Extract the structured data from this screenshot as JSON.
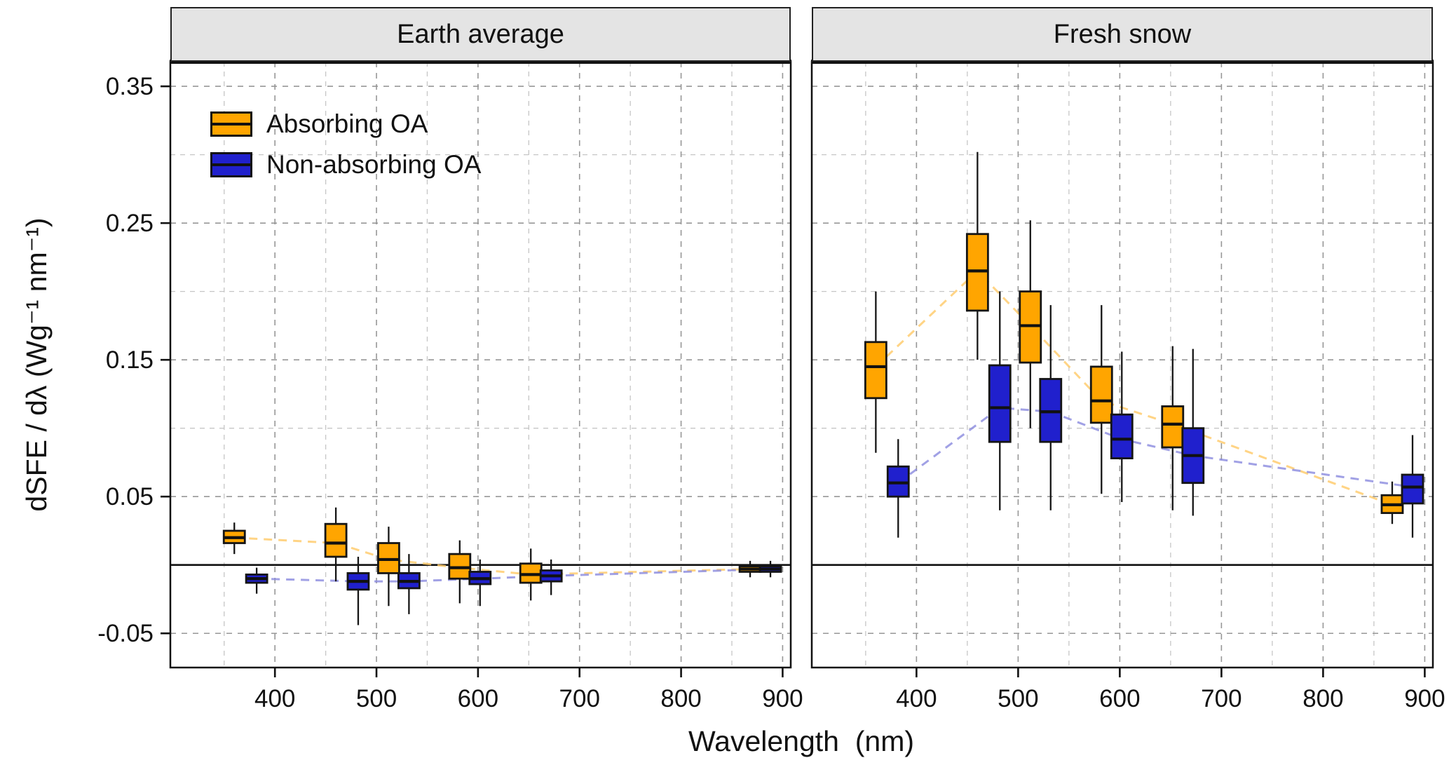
{
  "chart_data": {
    "type": "boxplot",
    "title": "",
    "x_axis": {
      "label": "Wavelength  (nm)",
      "ticks": [
        400,
        500,
        600,
        700,
        800,
        900
      ],
      "minor_ticks": [
        350,
        450,
        550,
        650,
        750,
        850
      ],
      "range": [
        297,
        908
      ]
    },
    "y_axis": {
      "label": "dSFE / dλ (Wg⁻¹ nm⁻¹)",
      "ticks": [
        -0.05,
        0.05,
        0.15,
        0.25,
        0.35
      ],
      "tick_labels": [
        "-0.05",
        "0.05",
        "0.15",
        "0.25",
        "0.35"
      ],
      "minor_ticks": [
        0,
        0.1,
        0.2,
        0.3
      ],
      "range": [
        -0.075,
        0.368
      ]
    },
    "reference_line_y": 0,
    "grid": "dashed",
    "legend_position": "top-left-inside-first-panel",
    "panels": [
      {
        "title": "Earth average",
        "series": [
          {
            "name": "Absorbing OA",
            "color": "#FFA500",
            "line_color": "#FFC966",
            "boxes": [
              {
                "x": 360,
                "low": 0.008,
                "q1": 0.016,
                "median": 0.02,
                "q3": 0.025,
                "high": 0.031
              },
              {
                "x": 460,
                "low": -0.012,
                "q1": 0.006,
                "median": 0.016,
                "q3": 0.03,
                "high": 0.042
              },
              {
                "x": 512,
                "low": -0.03,
                "q1": -0.006,
                "median": 0.004,
                "q3": 0.016,
                "high": 0.028
              },
              {
                "x": 582,
                "low": -0.028,
                "q1": -0.01,
                "median": -0.002,
                "q3": 0.008,
                "high": 0.018
              },
              {
                "x": 652,
                "low": -0.026,
                "q1": -0.013,
                "median": -0.007,
                "q3": 0.001,
                "high": 0.012
              },
              {
                "x": 868,
                "low": -0.009,
                "q1": -0.005,
                "median": -0.003,
                "q3": -0.001,
                "high": 0.003
              }
            ]
          },
          {
            "name": "Non-absorbing OA",
            "color": "#2020CD",
            "line_color": "#8A8ADF",
            "boxes": [
              {
                "x": 382,
                "low": -0.021,
                "q1": -0.013,
                "median": -0.01,
                "q3": -0.007,
                "high": -0.002
              },
              {
                "x": 482,
                "low": -0.044,
                "q1": -0.018,
                "median": -0.012,
                "q3": -0.006,
                "high": 0.006
              },
              {
                "x": 532,
                "low": -0.036,
                "q1": -0.017,
                "median": -0.012,
                "q3": -0.006,
                "high": 0.008
              },
              {
                "x": 602,
                "low": -0.03,
                "q1": -0.014,
                "median": -0.01,
                "q3": -0.005,
                "high": 0.004
              },
              {
                "x": 672,
                "low": -0.022,
                "q1": -0.012,
                "median": -0.008,
                "q3": -0.004,
                "high": 0.004
              },
              {
                "x": 888,
                "low": -0.009,
                "q1": -0.005,
                "median": -0.003,
                "q3": -0.001,
                "high": 0.003
              }
            ]
          }
        ]
      },
      {
        "title": "Fresh snow",
        "series": [
          {
            "name": "Absorbing OA",
            "color": "#FFA500",
            "line_color": "#FFC966",
            "boxes": [
              {
                "x": 360,
                "low": 0.082,
                "q1": 0.122,
                "median": 0.145,
                "q3": 0.163,
                "high": 0.2
              },
              {
                "x": 460,
                "low": 0.15,
                "q1": 0.186,
                "median": 0.215,
                "q3": 0.242,
                "high": 0.302
              },
              {
                "x": 512,
                "low": 0.1,
                "q1": 0.148,
                "median": 0.175,
                "q3": 0.2,
                "high": 0.252
              },
              {
                "x": 582,
                "low": 0.052,
                "q1": 0.104,
                "median": 0.12,
                "q3": 0.145,
                "high": 0.19
              },
              {
                "x": 652,
                "low": 0.04,
                "q1": 0.086,
                "median": 0.103,
                "q3": 0.116,
                "high": 0.16
              },
              {
                "x": 868,
                "low": 0.03,
                "q1": 0.038,
                "median": 0.044,
                "q3": 0.051,
                "high": 0.061
              }
            ]
          },
          {
            "name": "Non-absorbing OA",
            "color": "#2020CD",
            "line_color": "#8A8ADF",
            "boxes": [
              {
                "x": 382,
                "low": 0.02,
                "q1": 0.05,
                "median": 0.06,
                "q3": 0.072,
                "high": 0.092
              },
              {
                "x": 482,
                "low": 0.04,
                "q1": 0.09,
                "median": 0.115,
                "q3": 0.146,
                "high": 0.2
              },
              {
                "x": 532,
                "low": 0.04,
                "q1": 0.09,
                "median": 0.112,
                "q3": 0.136,
                "high": 0.19
              },
              {
                "x": 602,
                "low": 0.046,
                "q1": 0.078,
                "median": 0.092,
                "q3": 0.11,
                "high": 0.156
              },
              {
                "x": 672,
                "low": 0.036,
                "q1": 0.06,
                "median": 0.08,
                "q3": 0.1,
                "high": 0.158
              },
              {
                "x": 888,
                "low": 0.02,
                "q1": 0.045,
                "median": 0.057,
                "q3": 0.066,
                "high": 0.095
              }
            ]
          }
        ]
      }
    ]
  },
  "legend": {
    "items": [
      {
        "label": "Absorbing OA",
        "color": "#FFA500"
      },
      {
        "label": "Non-absorbing OA",
        "color": "#2020CD"
      }
    ]
  }
}
